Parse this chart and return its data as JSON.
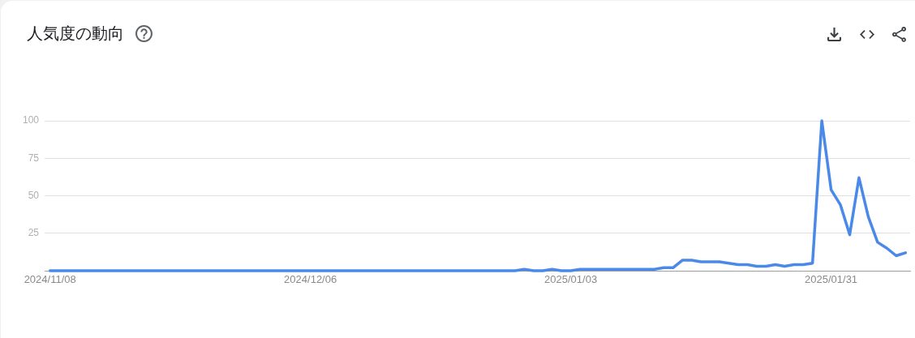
{
  "chart_data": {
    "type": "line",
    "title": "人気度の動向",
    "x": [
      "2024-11-08",
      "2024-11-09",
      "2024-11-10",
      "2024-11-11",
      "2024-11-12",
      "2024-11-13",
      "2024-11-14",
      "2024-11-15",
      "2024-11-16",
      "2024-11-17",
      "2024-11-18",
      "2024-11-19",
      "2024-11-20",
      "2024-11-21",
      "2024-11-22",
      "2024-11-23",
      "2024-11-24",
      "2024-11-25",
      "2024-11-26",
      "2024-11-27",
      "2024-11-28",
      "2024-11-29",
      "2024-11-30",
      "2024-12-01",
      "2024-12-02",
      "2024-12-03",
      "2024-12-04",
      "2024-12-05",
      "2024-12-06",
      "2024-12-07",
      "2024-12-08",
      "2024-12-09",
      "2024-12-10",
      "2024-12-11",
      "2024-12-12",
      "2024-12-13",
      "2024-12-14",
      "2024-12-15",
      "2024-12-16",
      "2024-12-17",
      "2024-12-18",
      "2024-12-19",
      "2024-12-20",
      "2024-12-21",
      "2024-12-22",
      "2024-12-23",
      "2024-12-24",
      "2024-12-25",
      "2024-12-26",
      "2024-12-27",
      "2024-12-28",
      "2024-12-29",
      "2024-12-30",
      "2024-12-31",
      "2025-01-01",
      "2025-01-02",
      "2025-01-03",
      "2025-01-04",
      "2025-01-05",
      "2025-01-06",
      "2025-01-07",
      "2025-01-08",
      "2025-01-09",
      "2025-01-10",
      "2025-01-11",
      "2025-01-12",
      "2025-01-13",
      "2025-01-14",
      "2025-01-15",
      "2025-01-16",
      "2025-01-17",
      "2025-01-18",
      "2025-01-19",
      "2025-01-20",
      "2025-01-21",
      "2025-01-22",
      "2025-01-23",
      "2025-01-24",
      "2025-01-25",
      "2025-01-26",
      "2025-01-27",
      "2025-01-28",
      "2025-01-29",
      "2025-01-30",
      "2025-01-31",
      "2025-02-01",
      "2025-02-02",
      "2025-02-03",
      "2025-02-04",
      "2025-02-05",
      "2025-02-06",
      "2025-02-07",
      "2025-02-08"
    ],
    "values": [
      0,
      0,
      0,
      0,
      0,
      0,
      0,
      0,
      0,
      0,
      0,
      0,
      0,
      0,
      0,
      0,
      0,
      0,
      0,
      0,
      0,
      0,
      0,
      0,
      0,
      0,
      0,
      0,
      0,
      0,
      0,
      0,
      0,
      0,
      0,
      0,
      0,
      0,
      0,
      0,
      0,
      0,
      0,
      0,
      0,
      0,
      0,
      0,
      0,
      0,
      0,
      1,
      0,
      0,
      1,
      0,
      0,
      1,
      1,
      1,
      1,
      1,
      1,
      1,
      1,
      1,
      2,
      2,
      7,
      7,
      6,
      6,
      6,
      5,
      4,
      4,
      3,
      3,
      4,
      3,
      4,
      4,
      5,
      100,
      54,
      44,
      24,
      62,
      36,
      19,
      15,
      10,
      12
    ],
    "color": "#4a89e8",
    "xlim": [
      "2024-11-07T10:00",
      "2025-02-08T12:00"
    ],
    "xticks": [
      {
        "value": "2024-11-08",
        "label": "2024/11/08"
      },
      {
        "value": "2024-12-06",
        "label": "2024/12/06"
      },
      {
        "value": "2025-01-03",
        "label": "2025/01/03"
      },
      {
        "value": "2025-01-31",
        "label": "2025/01/31"
      }
    ],
    "ylim": [
      0,
      100
    ],
    "yticks": [
      25,
      50,
      75,
      100
    ],
    "grid": "y",
    "marker": "none"
  }
}
